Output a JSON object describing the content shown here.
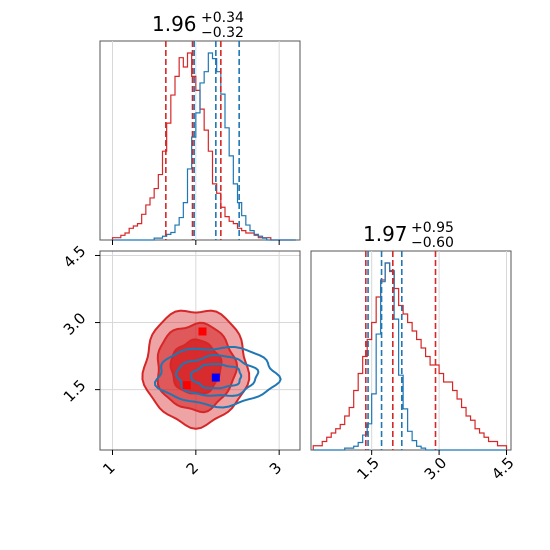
{
  "chart_data": {
    "type": "corner",
    "panels": [
      {
        "id": "marginal-param-1",
        "kind": "histogram",
        "title": {
          "main": "1.96",
          "plus": "+0.34",
          "minus": "−0.32"
        },
        "xlim": [
          0.85,
          3.25
        ],
        "grid": true,
        "bins": [
          1.0,
          1.05,
          1.1,
          1.15,
          1.2,
          1.25,
          1.3,
          1.35,
          1.4,
          1.45,
          1.5,
          1.55,
          1.6,
          1.65,
          1.7,
          1.75,
          1.8,
          1.85,
          1.9,
          1.95,
          2.0,
          2.05,
          2.1,
          2.15,
          2.2,
          2.25,
          2.3,
          2.35,
          2.4,
          2.45,
          2.5,
          2.55,
          2.6,
          2.65,
          2.7,
          2.75,
          2.8,
          2.85,
          2.9,
          2.95,
          3.0,
          3.05,
          3.1,
          3.15
        ],
        "series": [
          {
            "name": "red",
            "color": "#d62728",
            "counts": [
              1,
              1,
              2,
              3,
              5,
              6,
              7,
              11,
              15,
              18,
              22,
              28,
              38,
              50,
              62,
              70,
              78,
              74,
              80,
              70,
              64,
              56,
              47,
              38,
              24,
              20,
              14,
              10,
              8,
              7,
              5,
              4,
              3,
              3,
              2,
              1,
              1,
              1,
              0,
              0,
              0,
              0,
              0,
              0
            ],
            "quantiles": [
              1.64,
              1.96,
              2.3
            ]
          },
          {
            "name": "blue",
            "color": "#1f77b4",
            "counts": [
              0,
              0,
              0,
              0,
              0,
              0,
              0,
              0,
              0,
              0,
              1,
              1,
              2,
              3,
              4,
              8,
              12,
              20,
              38,
              55,
              68,
              84,
              90,
              100,
              97,
              90,
              78,
              60,
              45,
              30,
              20,
              13,
              8,
              5,
              3,
              2,
              1,
              0,
              0,
              0,
              0,
              0,
              0,
              0
            ],
            "quantiles": [
              1.98,
              2.24,
              2.52
            ]
          }
        ]
      },
      {
        "id": "joint",
        "kind": "contour",
        "xlim": [
          0.85,
          3.25
        ],
        "ylim": [
          0.15,
          4.6
        ],
        "xticks": [
          "1",
          "2",
          "3"
        ],
        "yticks": [
          "1.5",
          "3.0",
          "4.5"
        ],
        "grid": true,
        "series": [
          {
            "name": "red",
            "color": "#d62728",
            "center": [
              2.0,
              2.0
            ],
            "best_fit": [
              2.08,
              2.8
            ],
            "levels": [
              {
                "rx": 0.62,
                "ry": 1.3,
                "opacity": 0.42
              },
              {
                "rx": 0.47,
                "ry": 0.97,
                "opacity": 0.6
              },
              {
                "rx": 0.3,
                "ry": 0.6,
                "opacity": 0.9
              }
            ],
            "markers": [
              [
                1.89,
                1.6
              ],
              [
                2.08,
                2.8
              ]
            ]
          },
          {
            "name": "blue",
            "color": "#1f77b4",
            "center": [
              2.25,
              1.8
            ],
            "best_fit": [
              2.24,
              1.77
            ],
            "levels": [
              {
                "rx": 0.72,
                "ry": 0.65
              },
              {
                "rx": 0.48,
                "ry": 0.45
              },
              {
                "rx": 0.3,
                "ry": 0.27
              }
            ],
            "markers": [
              [
                2.24,
                1.77
              ]
            ]
          }
        ]
      },
      {
        "id": "marginal-param-2",
        "kind": "histogram",
        "title": {
          "main": "1.97",
          "plus": "+0.95",
          "minus": "−0.60"
        },
        "xlim": [
          0.15,
          4.6
        ],
        "xticks": [
          "1.5",
          "3.0",
          "4.5"
        ],
        "grid": true,
        "bins": [
          0.2,
          0.3,
          0.4,
          0.5,
          0.6,
          0.7,
          0.8,
          0.9,
          1.0,
          1.1,
          1.2,
          1.3,
          1.4,
          1.5,
          1.6,
          1.7,
          1.8,
          1.9,
          2.0,
          2.1,
          2.2,
          2.3,
          2.4,
          2.5,
          2.6,
          2.7,
          2.8,
          2.9,
          3.0,
          3.1,
          3.2,
          3.3,
          3.4,
          3.5,
          3.6,
          3.7,
          3.8,
          3.9,
          4.0,
          4.1,
          4.2,
          4.3,
          4.4
        ],
        "series": [
          {
            "name": "red",
            "color": "#d62728",
            "counts": [
              1,
              1,
              2,
              3,
              4,
              5,
              6,
              8,
              10,
              14,
              18,
              22,
              26,
              30,
              36,
              40,
              44,
              42,
              38,
              34,
              32,
              30,
              28,
              26,
              24,
              22,
              20,
              20,
              18,
              16,
              16,
              14,
              12,
              10,
              8,
              7,
              5,
              4,
              3,
              2,
              2,
              1,
              1
            ],
            "quantiles": [
              1.37,
              1.97,
              2.92
            ]
          },
          {
            "name": "blue",
            "color": "#1f77b4",
            "counts": [
              0,
              0,
              0,
              0,
              0,
              0,
              0,
              1,
              1,
              2,
              4,
              8,
              14,
              30,
              62,
              90,
              100,
              96,
              70,
              40,
              22,
              10,
              5,
              2,
              1,
              0,
              0,
              0,
              0,
              0,
              0,
              0,
              0,
              0,
              0,
              0,
              0,
              0,
              0,
              0,
              0,
              0,
              0
            ],
            "quantiles": [
              1.42,
              1.72,
              2.17
            ]
          }
        ]
      }
    ]
  }
}
